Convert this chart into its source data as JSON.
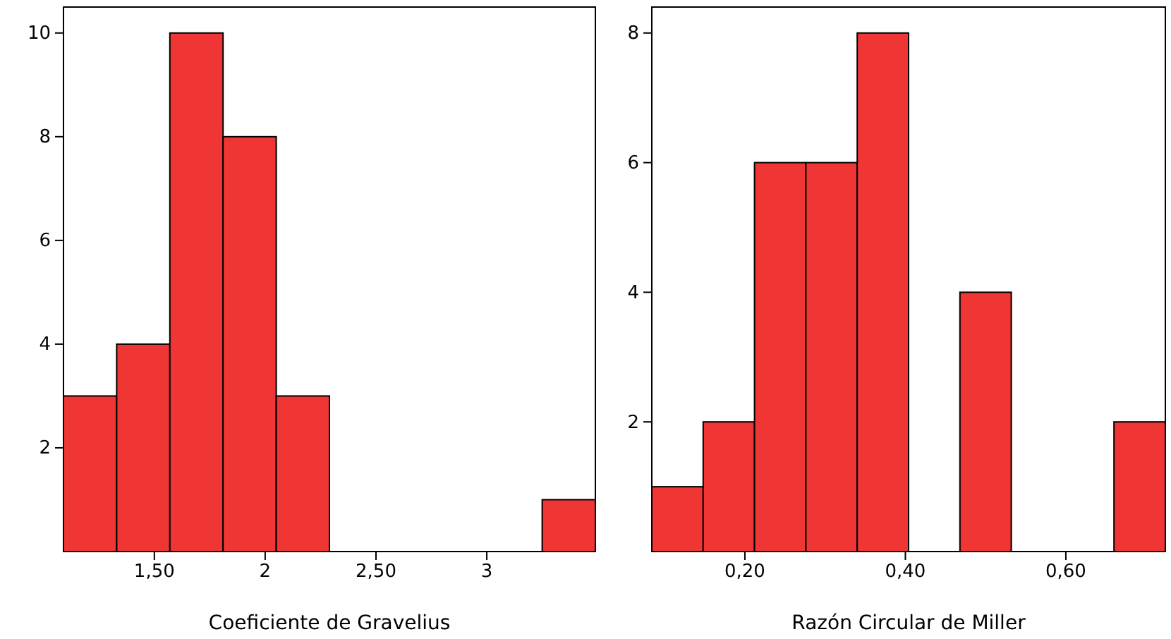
{
  "chart_data": [
    {
      "type": "histogram",
      "xlabel": "Coeficiente de Gravelius",
      "color": "#f03535",
      "bins": [
        1.09,
        1.33,
        1.57,
        1.81,
        2.05,
        2.29,
        2.53,
        2.77,
        3.01,
        3.25,
        3.49
      ],
      "values": [
        3,
        4,
        10,
        8,
        3,
        0,
        0,
        0,
        0,
        1
      ],
      "xlim": [
        1.09,
        3.49
      ],
      "xticks": [
        {
          "value": 1.5,
          "label": "1,50"
        },
        2,
        {
          "value": 2.5,
          "label": "2,50"
        },
        3
      ],
      "ylim": [
        0,
        10.5
      ],
      "yticks": [
        2,
        4,
        6,
        8,
        10
      ],
      "grid": false
    },
    {
      "type": "histogram",
      "xlabel": "Razón Circular de Miller",
      "color": "#f03535",
      "bins": [
        0.084,
        0.148,
        0.212,
        0.276,
        0.34,
        0.404,
        0.468,
        0.532,
        0.596,
        0.66,
        0.724
      ],
      "values": [
        1,
        2,
        6,
        6,
        8,
        0,
        4,
        0,
        0,
        2
      ],
      "xlim": [
        0.084,
        0.724
      ],
      "xticks": [
        {
          "value": 0.2,
          "label": "0,20"
        },
        {
          "value": 0.4,
          "label": "0,40"
        },
        {
          "value": 0.6,
          "label": "0,60"
        }
      ],
      "ylim": [
        0,
        8.4
      ],
      "yticks": [
        2,
        4,
        6,
        8
      ],
      "grid": false
    }
  ]
}
